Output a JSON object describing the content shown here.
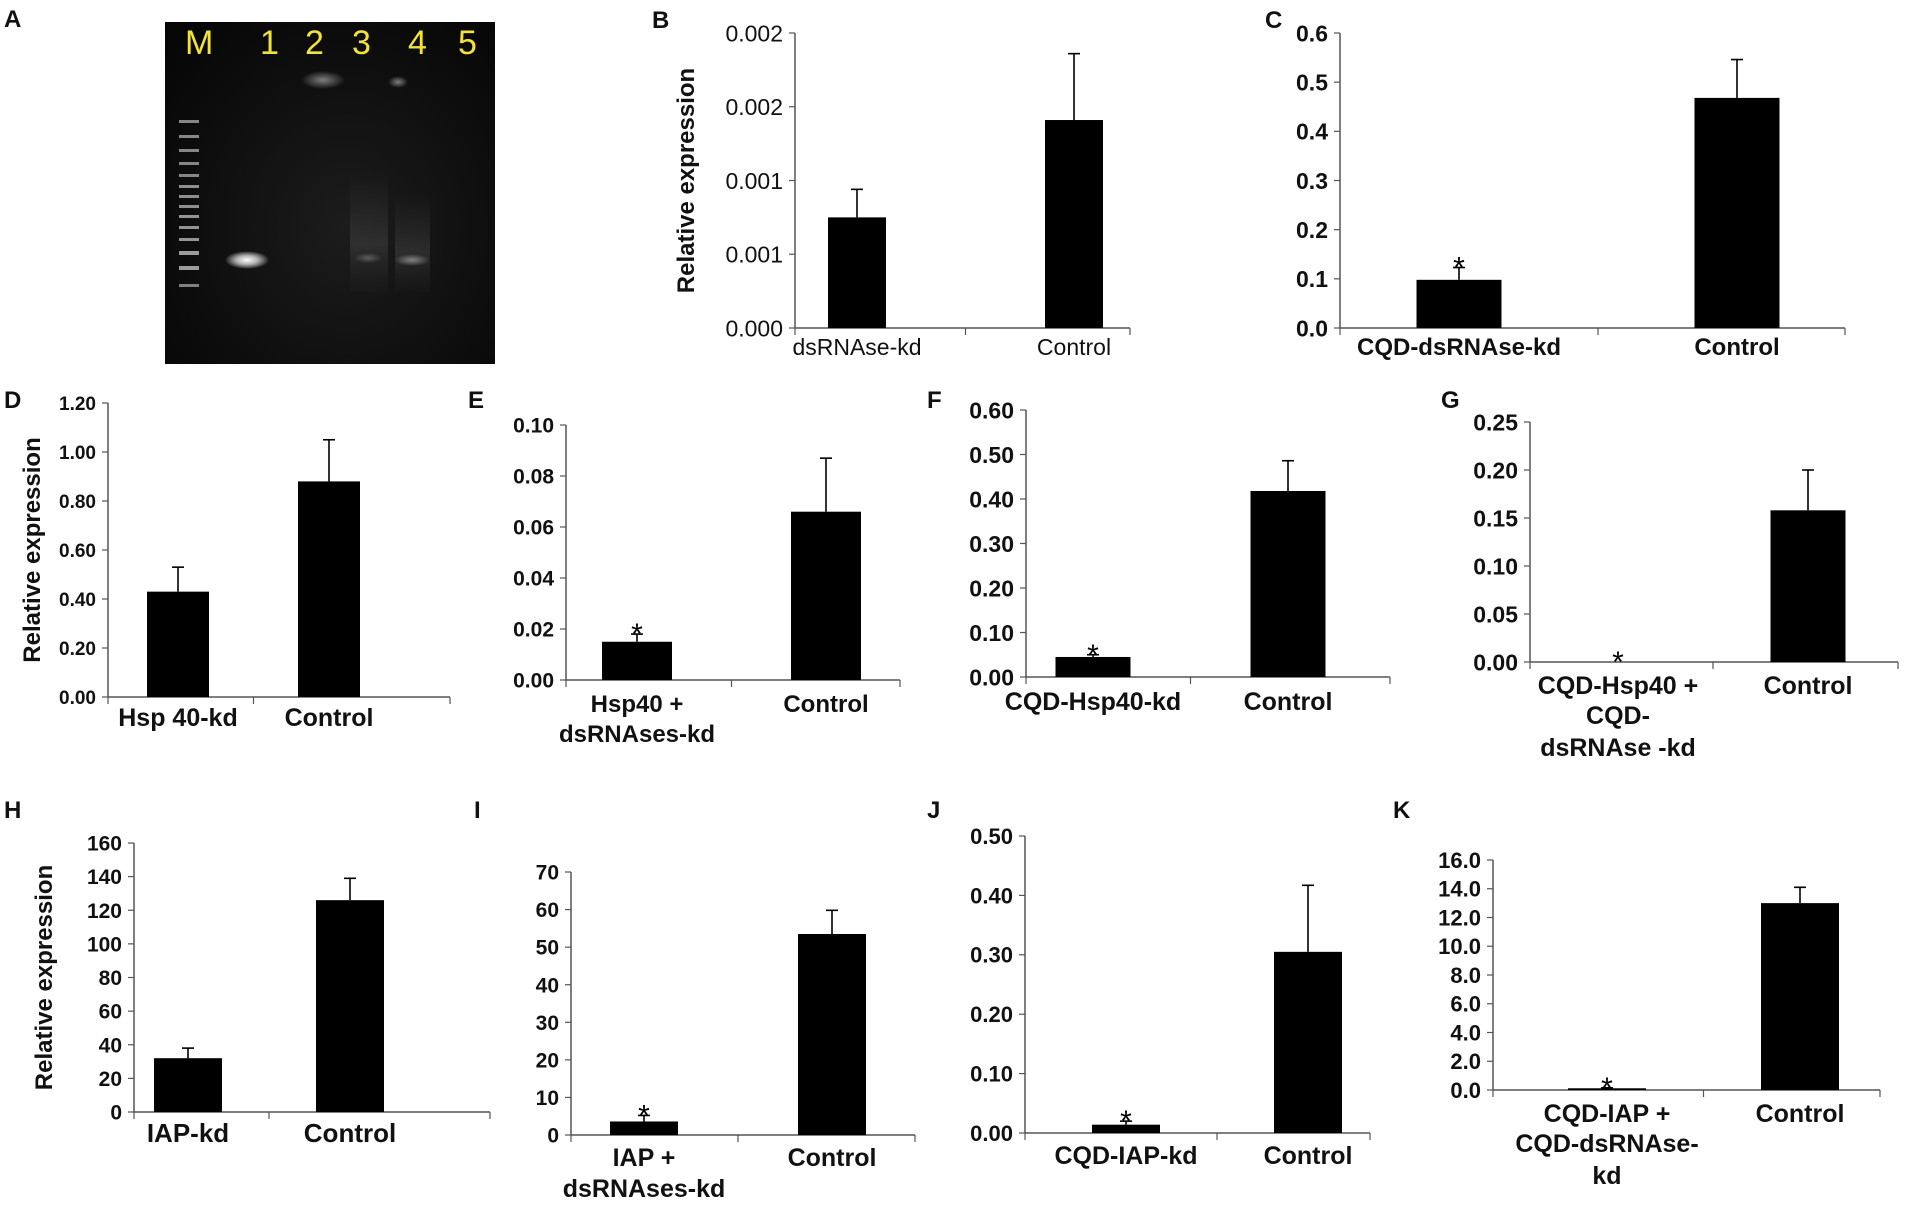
{
  "gel": {
    "panel_label": "A",
    "lanes": [
      "M",
      "1",
      "2",
      "3",
      "4",
      "5"
    ]
  },
  "chart_data": [
    {
      "id": "B",
      "type": "bar",
      "ylabel": "Relative expression",
      "ylim": [
        0,
        0.002
      ],
      "ticks": [
        "0.000",
        "0.001",
        "0.001",
        "0.002",
        "0.002"
      ],
      "tick_values": [
        0,
        0.0005,
        0.001,
        0.0015,
        0.002
      ],
      "categories": [
        "dsRNAse-kd",
        "Control"
      ],
      "values": [
        0.00075,
        0.00141
      ],
      "errors": [
        0.00019,
        0.00045
      ],
      "significant": [
        false,
        false
      ],
      "title": ""
    },
    {
      "id": "C",
      "type": "bar",
      "ylabel": "",
      "ylim": [
        0,
        0.6
      ],
      "ticks": [
        "0.0",
        "0.1",
        "0.2",
        "0.3",
        "0.4",
        "0.5",
        "0.6"
      ],
      "tick_values": [
        0,
        0.1,
        0.2,
        0.3,
        0.4,
        0.5,
        0.6
      ],
      "categories": [
        "CQD-dsRNAse-kd",
        "Control"
      ],
      "values": [
        0.098,
        0.468
      ],
      "errors": [
        0.025,
        0.078
      ],
      "significant": [
        true,
        false
      ],
      "title": ""
    },
    {
      "id": "D",
      "type": "bar",
      "ylabel": "Relative expression",
      "ylim": [
        0,
        1.2
      ],
      "ticks": [
        "0.00",
        "0.20",
        "0.40",
        "0.60",
        "0.80",
        "1.00",
        "1.20"
      ],
      "tick_values": [
        0,
        0.2,
        0.4,
        0.6,
        0.8,
        1.0,
        1.2
      ],
      "categories": [
        "Hsp 40-kd",
        "Control"
      ],
      "values": [
        0.43,
        0.88
      ],
      "errors": [
        0.1,
        0.17
      ],
      "significant": [
        false,
        false
      ],
      "title": ""
    },
    {
      "id": "E",
      "type": "bar",
      "ylabel": "",
      "ylim": [
        0,
        0.1
      ],
      "ticks": [
        "0.00",
        "0.02",
        "0.04",
        "0.06",
        "0.08",
        "0.10"
      ],
      "tick_values": [
        0,
        0.02,
        0.04,
        0.06,
        0.08,
        0.1
      ],
      "categories": [
        "Hsp40 + dsRNAses-kd",
        "Control"
      ],
      "values": [
        0.015,
        0.066
      ],
      "errors": [
        0.003,
        0.021
      ],
      "significant": [
        true,
        false
      ],
      "title": ""
    },
    {
      "id": "F",
      "type": "bar",
      "ylabel": "",
      "ylim": [
        0,
        0.6
      ],
      "ticks": [
        "0.00",
        "0.10",
        "0.20",
        "0.30",
        "0.40",
        "0.50",
        "0.60"
      ],
      "tick_values": [
        0,
        0.1,
        0.2,
        0.3,
        0.4,
        0.5,
        0.6
      ],
      "categories": [
        "CQD-Hsp40-kd",
        "Control"
      ],
      "values": [
        0.045,
        0.418
      ],
      "errors": [
        0.005,
        0.068
      ],
      "significant": [
        true,
        false
      ],
      "title": ""
    },
    {
      "id": "G",
      "type": "bar",
      "ylabel": "",
      "ylim": [
        0,
        0.25
      ],
      "ticks": [
        "0.00",
        "0.05",
        "0.10",
        "0.15",
        "0.20",
        "0.25"
      ],
      "tick_values": [
        0,
        0.05,
        0.1,
        0.15,
        0.2,
        0.25
      ],
      "categories": [
        "CQD-Hsp40 + CQD- dsRNAse -kd",
        "Control"
      ],
      "values": [
        0.0,
        0.158
      ],
      "errors": [
        0.0,
        0.042
      ],
      "significant": [
        true,
        false
      ],
      "title": ""
    },
    {
      "id": "H",
      "type": "bar",
      "ylabel": "Relative expression",
      "ylim": [
        0,
        160
      ],
      "ticks": [
        "0",
        "20",
        "40",
        "60",
        "80",
        "100",
        "120",
        "140",
        "160"
      ],
      "tick_values": [
        0,
        20,
        40,
        60,
        80,
        100,
        120,
        140,
        160
      ],
      "categories": [
        "IAP-kd",
        "Control"
      ],
      "values": [
        32,
        126
      ],
      "errors": [
        6,
        13
      ],
      "significant": [
        false,
        false
      ],
      "title": ""
    },
    {
      "id": "I",
      "type": "bar",
      "ylabel": "",
      "ylim": [
        0,
        70
      ],
      "ticks": [
        "0",
        "10",
        "20",
        "30",
        "40",
        "50",
        "60",
        "70"
      ],
      "tick_values": [
        0,
        10,
        20,
        30,
        40,
        50,
        60,
        70
      ],
      "categories": [
        "IAP + dsRNAses-kd",
        "Control"
      ],
      "values": [
        3.6,
        53.5
      ],
      "errors": [
        1.6,
        6.3
      ],
      "significant": [
        true,
        false
      ],
      "title": ""
    },
    {
      "id": "J",
      "type": "bar",
      "ylabel": "",
      "ylim": [
        0,
        0.5
      ],
      "ticks": [
        "0.00",
        "0.10",
        "0.20",
        "0.30",
        "0.40",
        "0.50"
      ],
      "tick_values": [
        0,
        0.1,
        0.2,
        0.3,
        0.4,
        0.5
      ],
      "categories": [
        "CQD-IAP-kd",
        "Control"
      ],
      "values": [
        0.014,
        0.305
      ],
      "errors": [
        0.006,
        0.112
      ],
      "significant": [
        true,
        false
      ],
      "title": ""
    },
    {
      "id": "K",
      "type": "bar",
      "ylabel": "",
      "ylim": [
        0,
        16
      ],
      "ticks": [
        "0.0",
        "2.0",
        "4.0",
        "6.0",
        "8.0",
        "10.0",
        "12.0",
        "14.0",
        "16.0"
      ],
      "tick_values": [
        0,
        2,
        4,
        6,
        8,
        10,
        12,
        14,
        16
      ],
      "categories": [
        "CQD-IAP + CQD-dsRNAse- kd",
        "Control"
      ],
      "values": [
        0.12,
        13.0
      ],
      "errors": [
        0.03,
        1.1
      ],
      "significant": [
        true,
        false
      ],
      "title": ""
    }
  ]
}
